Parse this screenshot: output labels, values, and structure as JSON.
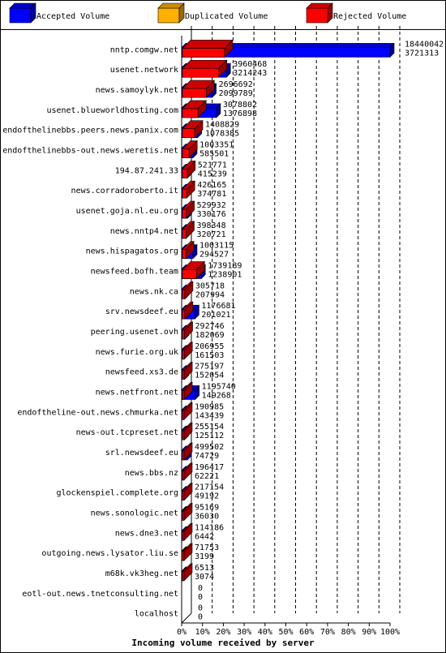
{
  "chart_data": {
    "type": "bar",
    "stacked": false,
    "title": "Incoming volume received by server",
    "xlabel": "Incoming volume received by server",
    "xlim": [
      0,
      100
    ],
    "x_ticks": [
      "0%",
      "10%",
      "20%",
      "30%",
      "40%",
      "50%",
      "60%",
      "70%",
      "80%",
      "90%",
      "100%"
    ],
    "colors": {
      "accepted": "#0000ff",
      "duplicated": "#ffb000",
      "rejected": "#ff0000"
    },
    "legend": [
      {
        "key": "accepted",
        "label": "Accepted Volume"
      },
      {
        "key": "duplicated",
        "label": "Duplicated Volume"
      },
      {
        "key": "rejected",
        "label": "Rejected Volume"
      }
    ],
    "servers": [
      {
        "name": "nntp.comgw.net",
        "total": "18440042",
        "rejected": "3721313",
        "total_value": 18440042,
        "rejected_value": 3721313,
        "dup_value": 0
      },
      {
        "name": "usenet.network",
        "total": "3960468",
        "rejected": "3214243",
        "total_value": 3960468,
        "rejected_value": 3214243,
        "dup_value": 0
      },
      {
        "name": "news.samoylyk.net",
        "total": "2696692",
        "rejected": "2099789",
        "total_value": 2696692,
        "rejected_value": 2099789,
        "dup_value": 0
      },
      {
        "name": "usenet.blueworldhosting.com",
        "total": "3078802",
        "rejected": "1376898",
        "total_value": 3078802,
        "rejected_value": 1376898,
        "dup_value": 0
      },
      {
        "name": "endofthelinebbs.peers.news.panix.com",
        "total": "1408829",
        "rejected": "1078385",
        "total_value": 1408829,
        "rejected_value": 1078385,
        "dup_value": 0
      },
      {
        "name": "endofthelinebbs-out.news.weretis.net",
        "total": "1003351",
        "rejected": "585501",
        "total_value": 1003351,
        "rejected_value": 585501,
        "dup_value": 0
      },
      {
        "name": "194.87.241.33",
        "total": "521771",
        "rejected": "415239",
        "total_value": 521771,
        "rejected_value": 415239,
        "dup_value": 0
      },
      {
        "name": "news.corradoroberto.it",
        "total": "426165",
        "rejected": "374781",
        "total_value": 426165,
        "rejected_value": 374781,
        "dup_value": 0
      },
      {
        "name": "usenet.goja.nl.eu.org",
        "total": "529932",
        "rejected": "330176",
        "total_value": 529932,
        "rejected_value": 330176,
        "dup_value": 0
      },
      {
        "name": "news.nntp4.net",
        "total": "398348",
        "rejected": "320721",
        "total_value": 398348,
        "rejected_value": 320721,
        "dup_value": 0
      },
      {
        "name": "news.hispagatos.org",
        "total": "1003115",
        "rejected": "294527",
        "total_value": 1003115,
        "rejected_value": 294527,
        "dup_value": 0
      },
      {
        "name": "newsfeed.bofh.team",
        "total": "1739189",
        "rejected": "1238901",
        "total_value": 1739189,
        "rejected_value": 1238901,
        "dup_value": 0
      },
      {
        "name": "news.nk.ca",
        "total": "305718",
        "rejected": "207994",
        "total_value": 305718,
        "rejected_value": 207994,
        "dup_value": 0
      },
      {
        "name": "srv.newsdeef.eu",
        "total": "1176681",
        "rejected": "201021",
        "total_value": 1176681,
        "rejected_value": 201021,
        "dup_value": 0
      },
      {
        "name": "peering.usenet.ovh",
        "total": "292746",
        "rejected": "182069",
        "total_value": 292746,
        "rejected_value": 182069,
        "dup_value": 0
      },
      {
        "name": "news.furie.org.uk",
        "total": "206955",
        "rejected": "161503",
        "total_value": 206955,
        "rejected_value": 161503,
        "dup_value": 0
      },
      {
        "name": "newsfeed.xs3.de",
        "total": "275197",
        "rejected": "152054",
        "total_value": 275197,
        "rejected_value": 152054,
        "dup_value": 0
      },
      {
        "name": "news.netfront.net",
        "total": "1195740",
        "rejected": "149268",
        "total_value": 1195740,
        "rejected_value": 149268,
        "dup_value": 0
      },
      {
        "name": "endoftheline-out.news.chmurka.net",
        "total": "190985",
        "rejected": "143439",
        "total_value": 190985,
        "rejected_value": 143439,
        "dup_value": 0
      },
      {
        "name": "news-out.tcpreset.net",
        "total": "255154",
        "rejected": "125112",
        "total_value": 255154,
        "rejected_value": 125112,
        "dup_value": 0
      },
      {
        "name": "srl.newsdeef.eu",
        "total": "499502",
        "rejected": "74729",
        "total_value": 499502,
        "rejected_value": 74729,
        "dup_value": 0
      },
      {
        "name": "news.bbs.nz",
        "total": "196417",
        "rejected": "62221",
        "total_value": 196417,
        "rejected_value": 62221,
        "dup_value": 0
      },
      {
        "name": "glockenspiel.complete.org",
        "total": "217154",
        "rejected": "49192",
        "total_value": 217154,
        "rejected_value": 49192,
        "dup_value": 0
      },
      {
        "name": "news.sonologic.net",
        "total": "95169",
        "rejected": "36030",
        "total_value": 95169,
        "rejected_value": 36030,
        "dup_value": 0
      },
      {
        "name": "news.dne3.net",
        "total": "114186",
        "rejected": "6442",
        "total_value": 114186,
        "rejected_value": 6442,
        "dup_value": 0
      },
      {
        "name": "outgoing.news.lysator.liu.se",
        "total": "71753",
        "rejected": "3199",
        "total_value": 71753,
        "rejected_value": 3199,
        "dup_value": 68554
      },
      {
        "name": "m68k.vk3heg.net",
        "total": "6513",
        "rejected": "3074",
        "total_value": 6513,
        "rejected_value": 3074,
        "dup_value": 0
      },
      {
        "name": "eotl-out.news.tnetconsulting.net",
        "total": "0",
        "rejected": "0",
        "total_value": 0,
        "rejected_value": 0,
        "dup_value": 0
      },
      {
        "name": "localhost",
        "total": "0",
        "rejected": "0",
        "total_value": 0,
        "rejected_value": 0,
        "dup_value": 0
      }
    ]
  }
}
